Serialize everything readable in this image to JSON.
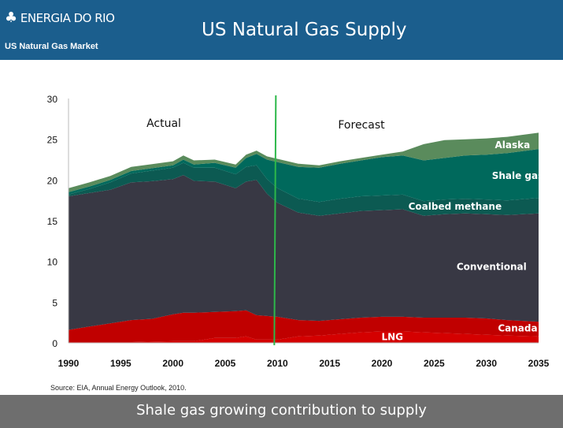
{
  "header": {
    "logo_text": "ENERGIA DO RIO",
    "title": "US Natural Gas Supply",
    "subtitle": "US Natural Gas Market"
  },
  "source": "Source: EIA, Annual Energy Outlook, 2010.",
  "footer": {
    "caption": "Shale gas growing contribution to supply"
  },
  "colors": {
    "header_bg": "#1b5e8d",
    "footer_bg": "#6e6e6e",
    "lng": "#d40000",
    "canada": "#c00000",
    "conventional": "#383844",
    "coalbed_methane": "#0c5a52",
    "shale_gas": "#00695c",
    "alaska": "#5a8b5c",
    "divider": "#2db84a"
  },
  "chart_data": {
    "type": "area",
    "stacked": true,
    "divider_year": 2010,
    "region_labels": [
      "Actual",
      "Forecast"
    ],
    "xlim": [
      1990,
      2035
    ],
    "ylim": [
      0,
      30
    ],
    "x_ticks": [
      "1990",
      "1995",
      "2000",
      "2005",
      "2010",
      "2015",
      "2020",
      "2025",
      "2030",
      "2035"
    ],
    "y_ticks": [
      "0",
      "5",
      "10",
      "15",
      "20",
      "25",
      "30"
    ],
    "grid": false,
    "legend": "inline labels",
    "x": [
      1990,
      1992,
      1994,
      1996,
      1998,
      2000,
      2001,
      2002,
      2004,
      2006,
      2007,
      2008,
      2009,
      2010,
      2012,
      2014,
      2016,
      2018,
      2020,
      2022,
      2024,
      2026,
      2028,
      2030,
      2032,
      2035
    ],
    "series": [
      {
        "name": "LNG",
        "key": "lng",
        "values": [
          0.1,
          0.1,
          0.1,
          0.1,
          0.15,
          0.2,
          0.2,
          0.2,
          0.6,
          0.6,
          0.8,
          0.4,
          0.4,
          0.4,
          0.8,
          0.9,
          1.1,
          1.3,
          1.4,
          1.4,
          1.3,
          1.2,
          1.1,
          1.0,
          0.9,
          0.8
        ]
      },
      {
        "name": "Canada",
        "key": "canada",
        "values": [
          1.5,
          1.9,
          2.3,
          2.7,
          2.8,
          3.3,
          3.5,
          3.5,
          3.2,
          3.3,
          3.2,
          3.0,
          2.9,
          2.8,
          2.0,
          1.8,
          1.8,
          1.8,
          1.8,
          1.8,
          1.8,
          1.9,
          2.0,
          2.0,
          1.9,
          1.8
        ]
      },
      {
        "name": "Conventional",
        "key": "conventional",
        "values": [
          16.4,
          16.4,
          16.4,
          16.9,
          16.9,
          16.6,
          16.9,
          16.2,
          16.0,
          15.1,
          15.8,
          16.6,
          15.0,
          14.0,
          13.2,
          12.9,
          13.0,
          13.1,
          13.1,
          13.2,
          12.5,
          12.7,
          12.8,
          12.8,
          12.9,
          13.3
        ]
      },
      {
        "name": "Coalbed methane",
        "key": "coalbed_methane",
        "values": [
          0.2,
          0.5,
          0.9,
          1.1,
          1.3,
          1.4,
          1.5,
          1.6,
          1.7,
          1.7,
          1.8,
          1.8,
          1.8,
          1.8,
          1.7,
          1.7,
          1.8,
          1.8,
          1.8,
          1.8,
          1.8,
          1.8,
          1.8,
          1.8,
          1.8,
          1.9
        ]
      },
      {
        "name": "Shale gas",
        "key": "shale_gas",
        "values": [
          0.3,
          0.3,
          0.3,
          0.3,
          0.3,
          0.3,
          0.4,
          0.4,
          0.6,
          0.8,
          1.1,
          1.4,
          2.4,
          3.2,
          3.9,
          4.2,
          4.3,
          4.4,
          4.7,
          4.8,
          5.0,
          5.1,
          5.3,
          5.5,
          5.8,
          6.0
        ]
      },
      {
        "name": "Alaska",
        "key": "alaska",
        "values": [
          0.5,
          0.5,
          0.5,
          0.5,
          0.5,
          0.5,
          0.5,
          0.5,
          0.4,
          0.4,
          0.4,
          0.4,
          0.4,
          0.4,
          0.4,
          0.3,
          0.3,
          0.3,
          0.3,
          0.5,
          2.0,
          2.2,
          2.0,
          2.0,
          2.0,
          2.0
        ]
      }
    ]
  }
}
